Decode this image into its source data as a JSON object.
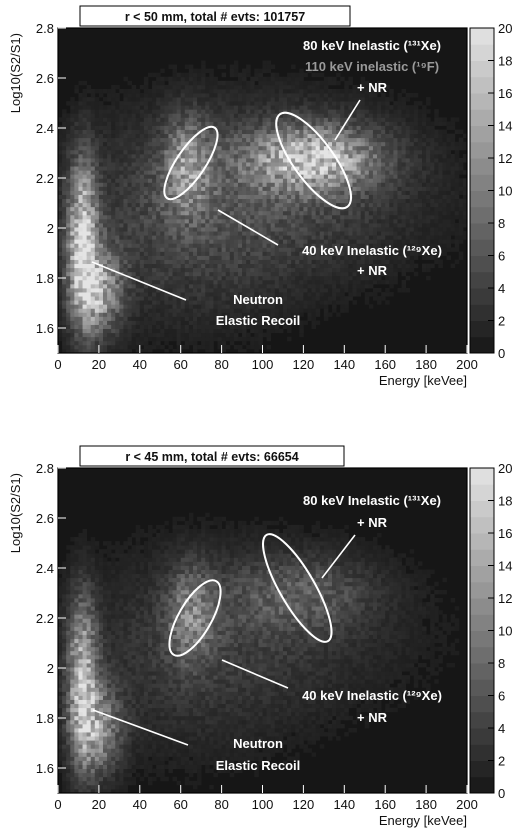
{
  "chart_data": [
    {
      "type": "heatmap",
      "title": "r < 50 mm, total # evts: 101757",
      "xlabel": "Energy [keVee]",
      "ylabel": "Log10(S2/S1)",
      "xlim": [
        0,
        200
      ],
      "ylim": [
        1.5,
        2.8
      ],
      "x_ticks": [
        "0",
        "20",
        "40",
        "60",
        "80",
        "100",
        "120",
        "140",
        "160",
        "180",
        "200"
      ],
      "y_ticks": [
        "1.6",
        "1.8",
        "2",
        "2.2",
        "2.4",
        "2.6",
        "2.8"
      ],
      "colorbar": {
        "range": [
          0,
          20
        ],
        "ticks": [
          "0",
          "2",
          "4",
          "6",
          "8",
          "10",
          "12",
          "14",
          "16",
          "18",
          "20"
        ],
        "low_color": "#101010",
        "high_color": "#e6e6e6"
      },
      "background": "#161616",
      "ellipses": [
        {
          "name": "inelastic-40",
          "cx": 65,
          "cy": 2.26,
          "rx": 7,
          "ry": 0.17,
          "rotate_deg": -8
        },
        {
          "name": "inelastic-80",
          "cx": 125,
          "cy": 2.27,
          "rx": 28,
          "ry": 0.08,
          "rotate_deg": 12
        }
      ],
      "annotations": [
        {
          "lines": [
            "80 keV Inelastic (¹³¹Xe)"
          ],
          "color": "#ffffff"
        },
        {
          "lines": [
            "110 keV inelastic (¹⁹F)"
          ],
          "color": "#9a9a9a"
        },
        {
          "lines": [
            "+ NR"
          ],
          "color": "#ffffff"
        },
        {
          "lines": [
            "40 keV Inelastic (¹²⁹Xe)",
            "+ NR"
          ],
          "color": "#ffffff"
        },
        {
          "lines": [
            "Neutron",
            "Elastic Recoil"
          ],
          "color": "#ffffff"
        }
      ],
      "blobs": [
        {
          "x": 12,
          "y": 1.95,
          "sx": 5,
          "sy": 0.22,
          "amp": 17
        },
        {
          "x": 20,
          "y": 1.75,
          "sx": 8,
          "sy": 0.12,
          "amp": 12
        },
        {
          "x": 125,
          "y": 2.28,
          "sx": 22,
          "sy": 0.09,
          "amp": 14
        },
        {
          "x": 63,
          "y": 2.25,
          "sx": 8,
          "sy": 0.13,
          "amp": 9
        },
        {
          "x": 110,
          "y": 2.15,
          "sx": 55,
          "sy": 0.25,
          "amp": 4
        },
        {
          "x": 60,
          "y": 2.0,
          "sx": 40,
          "sy": 0.3,
          "amp": 3
        }
      ]
    },
    {
      "type": "heatmap",
      "title": "r < 45 mm, total # evts: 66654",
      "xlabel": "Energy [keVee]",
      "ylabel": "Log10(S2/S1)",
      "xlim": [
        0,
        200
      ],
      "ylim": [
        1.5,
        2.8
      ],
      "x_ticks": [
        "0",
        "20",
        "40",
        "60",
        "80",
        "100",
        "120",
        "140",
        "160",
        "180",
        "200"
      ],
      "y_ticks": [
        "1.6",
        "1.8",
        "2",
        "2.2",
        "2.4",
        "2.6",
        "2.8"
      ],
      "colorbar": {
        "range": [
          0,
          20
        ],
        "ticks": [
          "0",
          "2",
          "4",
          "6",
          "8",
          "10",
          "12",
          "14",
          "16",
          "18",
          "20"
        ],
        "low_color": "#101010",
        "high_color": "#e6e6e6"
      },
      "background": "#161616",
      "ellipses": [
        {
          "name": "inelastic-40",
          "cx": 67,
          "cy": 2.2,
          "rx": 8,
          "ry": 0.17,
          "rotate_deg": -12
        },
        {
          "name": "inelastic-80",
          "cx": 117,
          "cy": 2.32,
          "rx": 30,
          "ry": 0.07,
          "rotate_deg": 18
        }
      ],
      "annotations": [
        {
          "lines": [
            "80 keV Inelastic (¹³¹Xe)",
            "+ NR"
          ],
          "color": "#ffffff"
        },
        {
          "lines": [
            "40 keV Inelastic (¹²⁹Xe)",
            "+ NR"
          ],
          "color": "#ffffff"
        },
        {
          "lines": [
            "Neutron",
            "Elastic Recoil"
          ],
          "color": "#ffffff"
        }
      ],
      "blobs": [
        {
          "x": 12,
          "y": 1.95,
          "sx": 5,
          "sy": 0.22,
          "amp": 15
        },
        {
          "x": 20,
          "y": 1.75,
          "sx": 8,
          "sy": 0.12,
          "amp": 10
        },
        {
          "x": 118,
          "y": 2.3,
          "sx": 24,
          "sy": 0.1,
          "amp": 5
        },
        {
          "x": 65,
          "y": 2.22,
          "sx": 8,
          "sy": 0.13,
          "amp": 8
        },
        {
          "x": 105,
          "y": 2.15,
          "sx": 55,
          "sy": 0.25,
          "amp": 2.5
        },
        {
          "x": 60,
          "y": 2.0,
          "sx": 40,
          "sy": 0.3,
          "amp": 2
        }
      ]
    }
  ]
}
